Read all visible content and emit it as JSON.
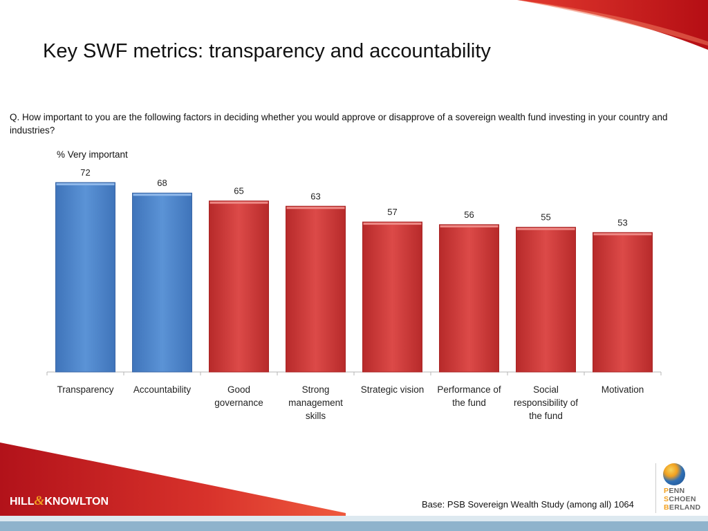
{
  "slide": {
    "title": "Key SWF metrics: transparency and accountability",
    "question": "Q. How important to you are the following factors in deciding whether you would approve or disapprove of a sovereign wealth fund investing in your country and industries?",
    "base_note": "Base: PSB Sovereign Wealth Study (among all) 1064",
    "logo_left": {
      "part1": "HILL",
      "part2": "&",
      "part3": "KNOWLTON"
    },
    "logo_right": {
      "lines": [
        {
          "initial": "P",
          "rest": "ENN"
        },
        {
          "initial": "S",
          "rest": "CHOEN"
        },
        {
          "initial": "B",
          "rest": "ERLAND"
        }
      ]
    }
  },
  "colors": {
    "highlight_bar": "#4f87cc",
    "other_bar": "#d6403f",
    "accent_red": "#c4151c",
    "footer_blue": "#8fb3cc"
  },
  "chart_data": {
    "type": "bar",
    "ylabel": "% Very important",
    "xlabel": "",
    "ylim": [
      0,
      72
    ],
    "grid": false,
    "legend": "none",
    "categories": [
      "Transparency",
      "Accountability",
      "Good governance",
      "Strong management skills",
      "Strategic vision",
      "Performance of the fund",
      "Social responsibility of the fund",
      "Motivation"
    ],
    "category_lines": [
      [
        "Transparency"
      ],
      [
        "Accountability"
      ],
      [
        "Good",
        "governance"
      ],
      [
        "Strong",
        "management",
        "skills"
      ],
      [
        "Strategic vision"
      ],
      [
        "Performance of",
        "the fund"
      ],
      [
        "Social",
        "responsibility of",
        "the fund"
      ],
      [
        "Motivation"
      ]
    ],
    "values": [
      72,
      68,
      65,
      63,
      57,
      56,
      55,
      53
    ],
    "highlighted": [
      true,
      true,
      false,
      false,
      false,
      false,
      false,
      false
    ]
  }
}
